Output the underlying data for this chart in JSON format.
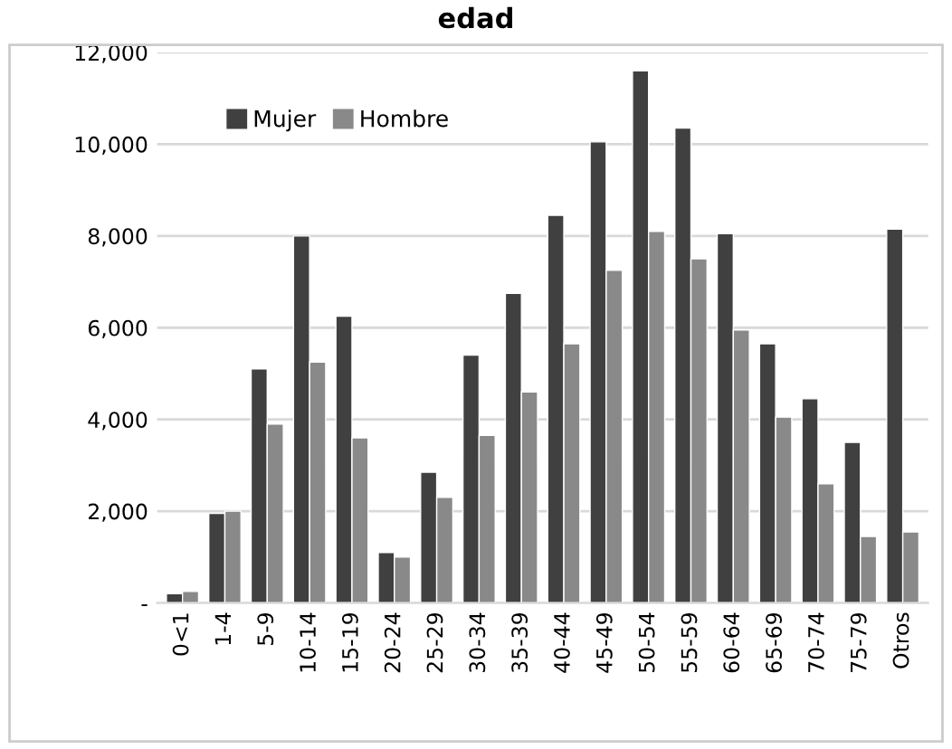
{
  "chart_data": {
    "type": "bar",
    "title": "edad",
    "categories": [
      "0<1",
      "1-4",
      "5-9",
      "10-14",
      "15-19",
      "20-24",
      "25-29",
      "30-34",
      "35-39",
      "40-44",
      "45-49",
      "50-54",
      "55-59",
      "60-64",
      "65-69",
      "70-74",
      "75-79",
      "Otros"
    ],
    "series": [
      {
        "name": "Mujer",
        "color": "#404040",
        "values": [
          200,
          1950,
          5100,
          8000,
          6250,
          1100,
          2850,
          5400,
          6750,
          8450,
          10050,
          11600,
          10350,
          8050,
          5650,
          4450,
          3500,
          8150
        ]
      },
      {
        "name": "Hombre",
        "color": "#898989",
        "values": [
          250,
          2000,
          3900,
          5250,
          3600,
          1000,
          2300,
          3650,
          4600,
          5650,
          7250,
          8100,
          7500,
          5950,
          4050,
          2600,
          1450,
          1550
        ]
      }
    ],
    "ylim": [
      0,
      12000
    ],
    "yticks": [
      {
        "value": 0,
        "label": "-"
      },
      {
        "value": 2000,
        "label": "2,000"
      },
      {
        "value": 4000,
        "label": "4,000"
      },
      {
        "value": 6000,
        "label": "6,000"
      },
      {
        "value": 8000,
        "label": "8,000"
      },
      {
        "value": 10000,
        "label": "10,000"
      },
      {
        "value": 12000,
        "label": "12,000"
      }
    ],
    "grid": "y",
    "legend": "top left"
  }
}
